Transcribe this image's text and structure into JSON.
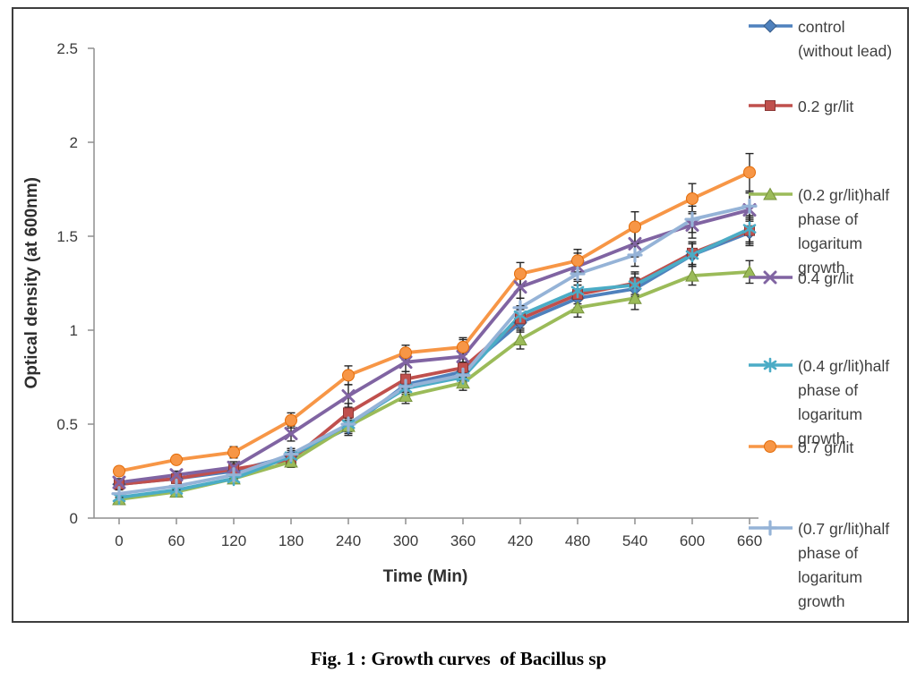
{
  "figure": {
    "caption": "Fig. 1 : Growth curves  of Bacillus sp"
  },
  "chart_data": {
    "type": "line",
    "title": "",
    "xlabel": "Time (Min)",
    "ylabel": "Optical density (at 600nm)",
    "x": [
      0,
      60,
      120,
      180,
      240,
      300,
      360,
      420,
      480,
      540,
      600,
      660
    ],
    "ylim": [
      0,
      2.5
    ],
    "yticks": [
      "0",
      "0.5",
      "1",
      "1.5",
      "2",
      "2.5"
    ],
    "grid": false,
    "legend_position": "right",
    "error_bar_color": "#262626",
    "axis_color": "#8f8f8f",
    "series": [
      {
        "name": "control (without lead)",
        "label_lines": [
          "control",
          "(without lead)"
        ],
        "color": "#4F81BD",
        "border": "#385D8A",
        "marker": "diamond",
        "values": [
          0.18,
          0.21,
          0.25,
          0.33,
          0.48,
          0.71,
          0.78,
          1.04,
          1.17,
          1.22,
          1.4,
          1.52
        ],
        "error": [
          0.02,
          0.02,
          0.03,
          0.04,
          0.04,
          0.04,
          0.05,
          0.05,
          0.05,
          0.06,
          0.06,
          0.07
        ]
      },
      {
        "name": "0.2 gr/lit",
        "label_lines": [
          "0.2 gr/lit"
        ],
        "color": "#C0504D",
        "border": "#8C3836",
        "marker": "square",
        "values": [
          0.18,
          0.21,
          0.26,
          0.31,
          0.56,
          0.74,
          0.8,
          1.06,
          1.19,
          1.25,
          1.41,
          1.53
        ],
        "error": [
          0.02,
          0.02,
          0.03,
          0.04,
          0.05,
          0.04,
          0.05,
          0.05,
          0.05,
          0.06,
          0.06,
          0.07
        ]
      },
      {
        "name": "(0.2 gr/lit)half phase of logaritum growth",
        "label_lines": [
          "(0.2 gr/lit)half",
          "phase of",
          "logaritum",
          "growth"
        ],
        "color": "#9BBB59",
        "border": "#77933C",
        "marker": "triangle",
        "values": [
          0.1,
          0.14,
          0.21,
          0.3,
          0.49,
          0.65,
          0.72,
          0.95,
          1.12,
          1.17,
          1.29,
          1.31
        ],
        "error": [
          0.02,
          0.02,
          0.02,
          0.03,
          0.04,
          0.04,
          0.04,
          0.05,
          0.05,
          0.06,
          0.05,
          0.06
        ]
      },
      {
        "name": "0.4 gr/lit",
        "label_lines": [
          "0.4 gr/lit"
        ],
        "color": "#8064A2",
        "border": "#604A7B",
        "marker": "x",
        "values": [
          0.19,
          0.23,
          0.27,
          0.45,
          0.65,
          0.83,
          0.86,
          1.23,
          1.34,
          1.46,
          1.56,
          1.64
        ],
        "error": [
          0.02,
          0.02,
          0.03,
          0.04,
          0.06,
          0.05,
          0.1,
          0.06,
          0.07,
          0.07,
          0.07,
          0.09
        ]
      },
      {
        "name": "(0.4 gr/lit)half phase of logaritum growth",
        "label_lines": [
          "(0.4 gr/lit)half",
          "phase of",
          "logaritum",
          "growth"
        ],
        "color": "#4BACC6",
        "border": "#31859B",
        "marker": "asterisk",
        "values": [
          0.11,
          0.15,
          0.21,
          0.33,
          0.5,
          0.69,
          0.75,
          1.08,
          1.21,
          1.24,
          1.4,
          1.54
        ],
        "error": [
          0.02,
          0.02,
          0.02,
          0.03,
          0.04,
          0.04,
          0.04,
          0.05,
          0.05,
          0.06,
          0.06,
          0.07
        ]
      },
      {
        "name": "0.7 gr/lit",
        "label_lines": [
          "0.7 gr/lit"
        ],
        "color": "#F79646",
        "border": "#E36C09",
        "marker": "circle",
        "values": [
          0.25,
          0.31,
          0.35,
          0.52,
          0.76,
          0.88,
          0.91,
          1.3,
          1.37,
          1.55,
          1.7,
          1.84
        ],
        "error": [
          0.02,
          0.02,
          0.03,
          0.04,
          0.05,
          0.04,
          0.04,
          0.06,
          0.06,
          0.08,
          0.08,
          0.1
        ]
      },
      {
        "name": "(0.7 gr/lit)half phase of logaritum growth",
        "label_lines": [
          "(0.7 gr/lit)half",
          "phase of",
          "logaritum",
          "growth"
        ],
        "color": "#95B3D7",
        "border": "#7094C4",
        "marker": "plus",
        "values": [
          0.13,
          0.17,
          0.23,
          0.34,
          0.5,
          0.7,
          0.76,
          1.12,
          1.3,
          1.4,
          1.59,
          1.66
        ],
        "error": [
          0.02,
          0.02,
          0.02,
          0.03,
          0.04,
          0.04,
          0.04,
          0.05,
          0.06,
          0.06,
          0.07,
          0.08
        ]
      }
    ]
  }
}
